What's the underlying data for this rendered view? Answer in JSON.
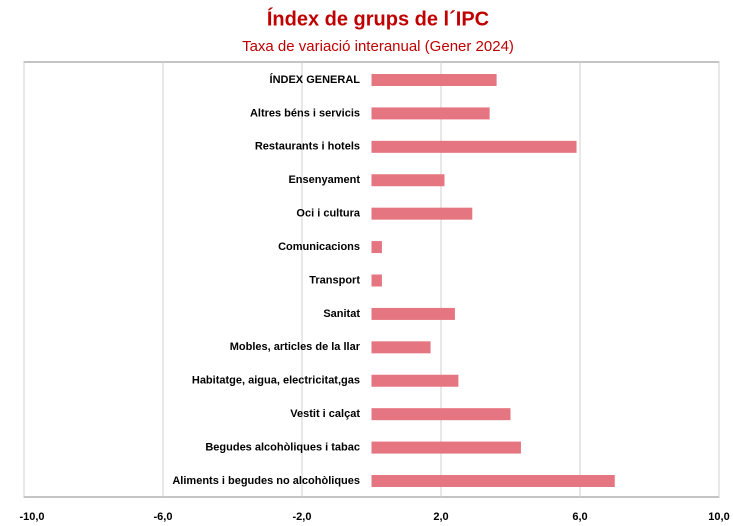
{
  "chart_data": {
    "type": "barh",
    "title": "Índex de grups de l´IPC",
    "subtitle": "Taxa de variació interanual (Gener 2024)",
    "categories": [
      "ÍNDEX GENERAL",
      "Altres béns i servicis",
      "Restaurants i hotels",
      "Ensenyament",
      "Oci i cultura",
      "Comunicacions",
      "Transport",
      "Sanitat",
      "Mobles, articles de la llar",
      "Habitatge, aigua, electricitat,gas",
      "Vestit i calçat",
      "Begudes alcohòliques i tabac",
      "Aliments i begudes no alcohòliques"
    ],
    "values": [
      3.6,
      3.4,
      5.9,
      2.1,
      2.9,
      0.3,
      0.3,
      2.4,
      1.7,
      2.5,
      4.0,
      4.3,
      7.0
    ],
    "color": "#e57580",
    "xlim": [
      -10,
      10
    ],
    "xticks": [
      {
        "value": -10,
        "label": "-10,0"
      },
      {
        "value": -6,
        "label": "-6,0"
      },
      {
        "value": -2,
        "label": "-2,0"
      },
      {
        "value": 2,
        "label": "2,0"
      },
      {
        "value": 6,
        "label": "6,0"
      },
      {
        "value": 10,
        "label": "10,0"
      }
    ],
    "grid": true
  }
}
